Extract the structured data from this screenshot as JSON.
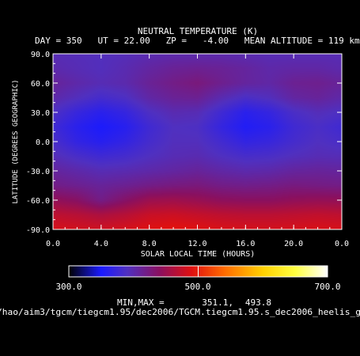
{
  "chart_data": {
    "type": "heatmap",
    "title": "NEUTRAL TEMPERATURE (K)",
    "subtitle": "DAY = 350   UT = 22.00   ZP =   -4.00   MEAN ALTITUDE = 119 km",
    "xlabel": "SOLAR LOCAL TIME (HOURS)",
    "ylabel": "LATITUDE (DEGREES GEOGRAPHIC)",
    "x_ticks": [
      "0.0",
      "4.0",
      "8.0",
      "12.0",
      "16.0",
      "20.0",
      "0.0"
    ],
    "y_ticks": [
      "-90.0",
      "-60.0",
      "-30.0",
      "0.0",
      "30.0",
      "60.0",
      "90.0"
    ],
    "xlim": [
      0,
      24
    ],
    "ylim": [
      -90,
      90
    ],
    "z_units": "K",
    "z_min": 351.1,
    "z_max": 493.8,
    "colorbar": {
      "range": [
        300,
        700
      ],
      "ticks": [
        "300.0",
        "500.0",
        "700.0"
      ],
      "colors": [
        "#000000",
        "#1a1aff",
        "#5030c0",
        "#8a1060",
        "#e01010",
        "#ff6a00",
        "#ffd000",
        "#ffff40",
        "#ffffff"
      ],
      "stops": [
        300,
        350,
        390,
        440,
        490,
        540,
        600,
        650,
        700
      ]
    },
    "field_samples": {
      "lt": [
        0,
        2,
        4,
        6,
        8,
        10,
        12,
        14,
        16,
        18,
        20,
        22,
        24
      ],
      "lat": [
        -90,
        -75,
        -60,
        -45,
        -30,
        -15,
        0,
        15,
        30,
        45,
        60,
        75,
        90
      ],
      "temps_K": [
        [
          485,
          482,
          480,
          484,
          490,
          493,
          490,
          486,
          484,
          483,
          484,
          486,
          485
        ],
        [
          470,
          466,
          460,
          466,
          476,
          478,
          474,
          470,
          468,
          468,
          470,
          472,
          470
        ],
        [
          445,
          438,
          420,
          436,
          450,
          452,
          448,
          442,
          440,
          440,
          444,
          446,
          445
        ],
        [
          420,
          415,
          410,
          414,
          420,
          424,
          426,
          420,
          418,
          420,
          424,
          422,
          420
        ],
        [
          408,
          402,
          396,
          398,
          402,
          406,
          410,
          404,
          400,
          402,
          408,
          410,
          408
        ],
        [
          395,
          385,
          378,
          382,
          390,
          396,
          398,
          390,
          384,
          386,
          392,
          396,
          395
        ],
        [
          385,
          368,
          360,
          368,
          382,
          392,
          392,
          380,
          368,
          372,
          382,
          390,
          385
        ],
        [
          378,
          362,
          352,
          360,
          378,
          390,
          388,
          370,
          356,
          362,
          378,
          386,
          378
        ],
        [
          388,
          372,
          362,
          370,
          388,
          398,
          396,
          378,
          362,
          370,
          386,
          394,
          388
        ],
        [
          402,
          392,
          382,
          388,
          404,
          412,
          414,
          398,
          386,
          392,
          406,
          410,
          402
        ],
        [
          410,
          402,
          396,
          400,
          412,
          420,
          426,
          416,
          408,
          404,
          414,
          416,
          410
        ],
        [
          400,
          396,
          392,
          398,
          406,
          412,
          414,
          412,
          408,
          402,
          404,
          404,
          400
        ],
        [
          396,
          394,
          392,
          394,
          398,
          400,
          400,
          400,
          398,
          396,
          396,
          396,
          396
        ]
      ]
    }
  },
  "footer": {
    "minmax_label": "MIN,MAX =",
    "min_value": "351.1,",
    "max_value": "493.8",
    "file_path": "/hao/aim3/tgcm/tiegcm1.95/dec2006/TGCM.tiegcm1.95.s_dec2006_heelis_g"
  }
}
